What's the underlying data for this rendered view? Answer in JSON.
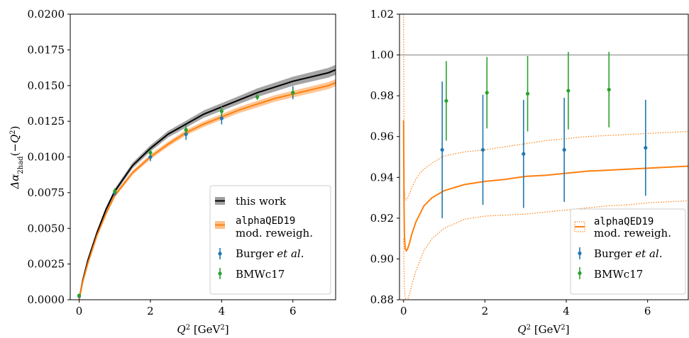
{
  "chart_data": [
    {
      "type": "line",
      "panel": "left",
      "xlabel": "Q² [GeV²]",
      "ylabel": "Δα₂had(−Q²)",
      "xlim": [
        -0.25,
        7.2
      ],
      "ylim": [
        0.0,
        0.02
      ],
      "xticks": [
        "0",
        "2",
        "4",
        "6"
      ],
      "yticks": [
        "0.0000",
        "0.0025",
        "0.0050",
        "0.0075",
        "0.0100",
        "0.0125",
        "0.0150",
        "0.0175",
        "0.0200"
      ],
      "legend_position": "lower-right",
      "grid": false,
      "curves": [
        {
          "name": "this work",
          "color": "#000000",
          "band_color": "#9a9a9a",
          "x": [
            0,
            0.1,
            0.25,
            0.5,
            0.75,
            1,
            1.5,
            2,
            2.5,
            3,
            3.5,
            4,
            4.5,
            5,
            5.5,
            6,
            6.5,
            7,
            7.2
          ],
          "y": [
            0,
            0.00135,
            0.0028,
            0.0047,
            0.0063,
            0.0076,
            0.0094,
            0.0106,
            0.0116,
            0.0123,
            0.013,
            0.0135,
            0.014,
            0.0145,
            0.0149,
            0.0153,
            0.0156,
            0.0159,
            0.0161
          ],
          "band_halfwidth": [
            0,
            4e-05,
            8e-05,
            0.00012,
            0.00016,
            0.00018,
            0.0002,
            0.00022,
            0.00023,
            0.00024,
            0.00026,
            0.00027,
            0.00028,
            0.0003,
            0.00031,
            0.00032,
            0.00033,
            0.00034,
            0.00035
          ]
        },
        {
          "name": "alphaQED19",
          "name_line2": "mod. reweigh.",
          "color": "#ff7f0e",
          "band_color": "#ffc08a",
          "x": [
            0,
            0.1,
            0.25,
            0.5,
            0.75,
            1,
            1.5,
            2,
            2.5,
            3,
            3.5,
            4,
            4.5,
            5,
            5.5,
            6,
            6.5,
            7,
            7.2
          ],
          "y": [
            0,
            0.00125,
            0.0026,
            0.0045,
            0.006,
            0.0073,
            0.0089,
            0.01,
            0.0109,
            0.0117,
            0.0123,
            0.0128,
            0.0133,
            0.0137,
            0.0141,
            0.0144,
            0.0147,
            0.015,
            0.0152
          ],
          "band_halfwidth": [
            0,
            4e-05,
            7e-05,
            0.0001,
            0.00012,
            0.00014,
            0.00016,
            0.00017,
            0.00018,
            0.00019,
            0.0002,
            0.00021,
            0.00022,
            0.00023,
            0.00023,
            0.00024,
            0.00024,
            0.00025,
            0.00025
          ]
        }
      ],
      "points": [
        {
          "name": "Burger et al.",
          "color": "#1f77b4",
          "x": [
            0.0,
            1.0,
            2.0,
            3.0,
            4.0,
            6.0
          ],
          "y": [
            0.00025,
            0.0075,
            0.01,
            0.0116,
            0.0127,
            0.0145
          ],
          "err": [
            5e-05,
            0.00022,
            0.0003,
            0.0004,
            0.00042,
            0.00045
          ]
        },
        {
          "name": "BMWc17",
          "color": "#2ca02c",
          "x": [
            0.0,
            1.0,
            2.0,
            3.0,
            4.0,
            5.0,
            6.0
          ],
          "y": [
            0.0003,
            0.0076,
            0.0103,
            0.0119,
            0.0132,
            0.0142,
            0.0145
          ],
          "err": [
            4e-05,
            0.0002,
            0.00025,
            0.0003,
            0.00033,
            0.0002,
            0.00025
          ]
        }
      ]
    },
    {
      "type": "line",
      "panel": "right",
      "xlabel": "Q² [GeV²]",
      "ylabel": "",
      "xlim": [
        -0.1,
        7.0
      ],
      "ylim": [
        0.88,
        1.02
      ],
      "xticks": [
        "0",
        "2",
        "4",
        "6"
      ],
      "yticks": [
        "0.88",
        "0.90",
        "0.92",
        "0.94",
        "0.96",
        "0.98",
        "1.00",
        "1.02"
      ],
      "reference_line": 1.0,
      "legend_position": "lower-right",
      "grid": false,
      "curves": [
        {
          "name": "alphaQED19",
          "name_line2": "mod. reweigh.",
          "color": "#ff7f0e",
          "x": [
            0.0,
            0.01,
            0.02,
            0.04,
            0.07,
            0.1,
            0.15,
            0.2,
            0.3,
            0.4,
            0.5,
            0.7,
            1.0,
            1.5,
            2,
            2.5,
            3,
            3.5,
            4,
            4.5,
            5,
            5.5,
            6,
            6.5,
            7
          ],
          "y": [
            0.968,
            0.93,
            0.912,
            0.905,
            0.904,
            0.905,
            0.908,
            0.912,
            0.918,
            0.922,
            0.926,
            0.93,
            0.9335,
            0.9365,
            0.938,
            0.939,
            0.9405,
            0.941,
            0.942,
            0.943,
            0.9435,
            0.944,
            0.9445,
            0.945,
            0.9455
          ],
          "upper": [
            1.02,
            0.96,
            0.935,
            0.929,
            0.929,
            0.93,
            0.932,
            0.935,
            0.939,
            0.942,
            0.944,
            0.947,
            0.9505,
            0.9525,
            0.9535,
            0.955,
            0.9565,
            0.958,
            0.959,
            0.96,
            0.9605,
            0.961,
            0.9615,
            0.962,
            0.9625
          ],
          "lower": [
            0.91,
            0.895,
            0.886,
            0.881,
            0.879,
            0.88,
            0.883,
            0.887,
            0.894,
            0.899,
            0.904,
            0.91,
            0.915,
            0.9195,
            0.921,
            0.9215,
            0.922,
            0.923,
            0.924,
            0.925,
            0.926,
            0.9265,
            0.9275,
            0.928,
            0.9285
          ]
        }
      ],
      "points": [
        {
          "name": "Burger et al.",
          "color": "#1f77b4",
          "x": [
            0.95,
            1.95,
            2.95,
            3.95,
            5.95
          ],
          "y": [
            0.9535,
            0.9535,
            0.9515,
            0.9535,
            0.9545
          ],
          "err": [
            0.0335,
            0.027,
            0.0265,
            0.0255,
            0.0235
          ]
        },
        {
          "name": "BMWc17",
          "color": "#2ca02c",
          "x": [
            1.05,
            2.05,
            3.05,
            4.05,
            5.05
          ],
          "y": [
            0.9775,
            0.9815,
            0.981,
            0.9825,
            0.983
          ],
          "err": [
            0.0195,
            0.0175,
            0.0185,
            0.019,
            0.0185
          ]
        }
      ]
    }
  ],
  "legends": {
    "left": [
      "this work",
      "alphaQED19",
      "mod. reweigh.",
      "Burger",
      "et al.",
      "BMWc17"
    ],
    "right": [
      "alphaQED19",
      "mod. reweigh.",
      "Burger",
      "et al.",
      "BMWc17"
    ]
  }
}
